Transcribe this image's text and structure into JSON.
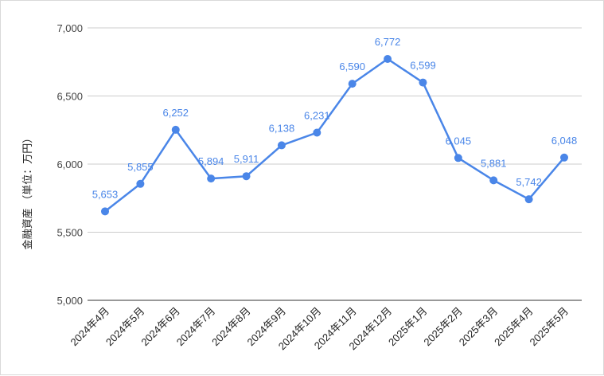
{
  "chart_data": {
    "type": "line",
    "title": "",
    "xlabel": "",
    "ylabel": "金融資産 （単位：万円）",
    "ylim": [
      5000,
      7000
    ],
    "yticks": [
      5000,
      5500,
      6000,
      6500,
      7000
    ],
    "ytick_labels": [
      "5,000",
      "5,500",
      "6,000",
      "6,500",
      "7,000"
    ],
    "grid": true,
    "legend": "none",
    "categories": [
      "2024年4月",
      "2024年5月",
      "2024年6月",
      "2024年7月",
      "2024年8月",
      "2024年9月",
      "2024年10月",
      "2024年11月",
      "2024年12月",
      "2025年1月",
      "2025年2月",
      "2025年3月",
      "2025年4月",
      "2025年5月"
    ],
    "values": [
      5653,
      5855,
      6252,
      5894,
      5911,
      6138,
      6231,
      6590,
      6772,
      6599,
      6045,
      5881,
      5742,
      6048
    ],
    "value_labels": [
      "5,653",
      "5,855",
      "6,252",
      "5,894",
      "5,911",
      "6,138",
      "6,231",
      "6,590",
      "6,772",
      "6,599",
      "6,045",
      "5,881",
      "5,742",
      "6,048"
    ],
    "color": "#4a86e8"
  }
}
